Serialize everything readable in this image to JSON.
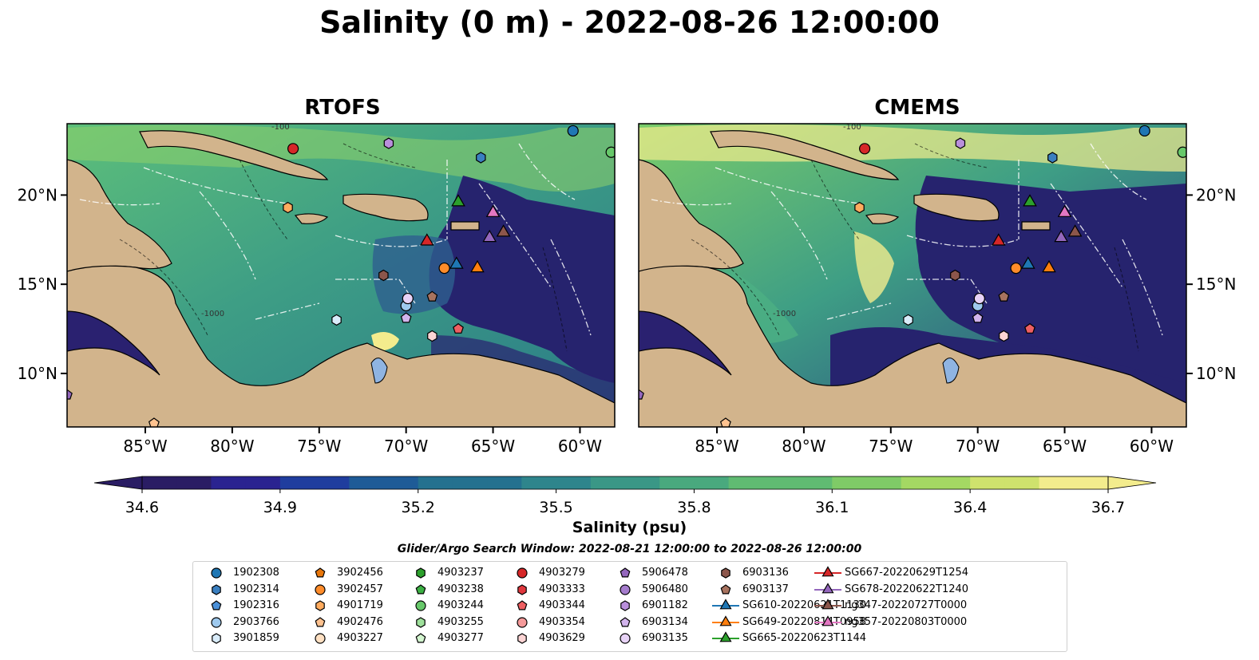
{
  "title": "Salinity (0 m) - 2022-08-26 12:00:00",
  "panels": [
    {
      "title": "RTOFS"
    },
    {
      "title": "CMEMS"
    }
  ],
  "map_axes": {
    "lon_labels": [
      "85°W",
      "80°W",
      "75°W",
      "70°W",
      "65°W",
      "60°W"
    ],
    "lon_values": [
      -85,
      -80,
      -75,
      -70,
      -65,
      -60
    ],
    "lat_labels": [
      "20°N",
      "15°N",
      "10°N"
    ],
    "lat_values": [
      20,
      15,
      10
    ],
    "extent": {
      "lon": [
        -89.5,
        -58.0
      ],
      "lat": [
        7.0,
        24.0
      ]
    }
  },
  "contour_labels": [
    "-100",
    "-1000"
  ],
  "colorbar": {
    "label": "Salinity (psu)",
    "ticks": [
      "34.6",
      "34.9",
      "35.2",
      "35.5",
      "35.8",
      "36.1",
      "36.4",
      "36.7"
    ],
    "min": 34.6,
    "max": 36.7,
    "colormap": "haline",
    "extend": "both"
  },
  "search_window": "Glider/Argo Search Window: 2022-08-21 12:00:00 to 2022-08-26 12:00:00",
  "legend": [
    {
      "label": "1902308",
      "marker": "circle",
      "color": "#1f77b4"
    },
    {
      "label": "1902314",
      "marker": "hexagon",
      "color": "#3a7fc0"
    },
    {
      "label": "1902316",
      "marker": "pentagon",
      "color": "#4a90d9"
    },
    {
      "label": "2903766",
      "marker": "circle",
      "color": "#9ec9ee"
    },
    {
      "label": "3901859",
      "marker": "hexagon",
      "color": "#d9ecfa"
    },
    {
      "label": "3902456",
      "marker": "pentagon",
      "color": "#e8760a"
    },
    {
      "label": "3902457",
      "marker": "circle",
      "color": "#ff8c2a"
    },
    {
      "label": "4901719",
      "marker": "hexagon",
      "color": "#ffab5e"
    },
    {
      "label": "4902476",
      "marker": "pentagon",
      "color": "#ffc28f"
    },
    {
      "label": "4903227",
      "marker": "circle",
      "color": "#ffe0c2"
    },
    {
      "label": "4903237",
      "marker": "hexagon",
      "color": "#2ca02c"
    },
    {
      "label": "4903238",
      "marker": "pentagon",
      "color": "#3cb043"
    },
    {
      "label": "4903244",
      "marker": "circle",
      "color": "#67c86a"
    },
    {
      "label": "4903255",
      "marker": "hexagon",
      "color": "#9ee09b"
    },
    {
      "label": "4903277",
      "marker": "pentagon",
      "color": "#d3f5cf"
    },
    {
      "label": "4903279",
      "marker": "circle",
      "color": "#d62728"
    },
    {
      "label": "4903333",
      "marker": "hexagon",
      "color": "#e0373d"
    },
    {
      "label": "4903344",
      "marker": "pentagon",
      "color": "#ee5f62"
    },
    {
      "label": "4903354",
      "marker": "circle",
      "color": "#f59a9a"
    },
    {
      "label": "4903629",
      "marker": "hexagon",
      "color": "#fcd4d4"
    },
    {
      "label": "5906478",
      "marker": "pentagon",
      "color": "#9467bd"
    },
    {
      "label": "5906480",
      "marker": "circle",
      "color": "#a57ccd"
    },
    {
      "label": "6901182",
      "marker": "hexagon",
      "color": "#b98fdb"
    },
    {
      "label": "6903134",
      "marker": "pentagon",
      "color": "#d2b4ec"
    },
    {
      "label": "6903135",
      "marker": "circle",
      "color": "#e8d3f7"
    },
    {
      "label": "6903136",
      "marker": "hexagon",
      "color": "#8c564b"
    },
    {
      "label": "6903137",
      "marker": "pentagon",
      "color": "#a8735f"
    },
    {
      "label": "SG610-20220621T1130",
      "marker": "triangle",
      "color": "#1f77b4"
    },
    {
      "label": "SG649-20220814T0958",
      "marker": "triangle",
      "color": "#ff7f0e"
    },
    {
      "label": "SG665-20220623T1144",
      "marker": "triangle",
      "color": "#2ca02c"
    },
    {
      "label": "SG667-20220629T1254",
      "marker": "triangle",
      "color": "#d62728"
    },
    {
      "label": "SG678-20220622T1240",
      "marker": "triangle",
      "color": "#9467bd"
    },
    {
      "label": "ng347-20220727T0000",
      "marker": "triangle",
      "color": "#8c564b"
    },
    {
      "label": "ng357-20220803T0000",
      "marker": "triangle",
      "color": "#e377c2"
    }
  ],
  "observations": [
    {
      "id": "1902308",
      "lon": -60.4,
      "lat": 23.6
    },
    {
      "id": "1902314",
      "lon": -65.7,
      "lat": 22.1
    },
    {
      "id": "2903766",
      "lon": -70.0,
      "lat": 13.8
    },
    {
      "id": "3901859",
      "lon": -74.0,
      "lat": 13.0
    },
    {
      "id": "3902457",
      "lon": -67.8,
      "lat": 15.9
    },
    {
      "id": "4901719",
      "lon": -76.8,
      "lat": 19.3
    },
    {
      "id": "4902476",
      "lon": -84.5,
      "lat": 7.2
    },
    {
      "id": "4903244",
      "lon": -58.2,
      "lat": 22.4
    },
    {
      "id": "4903279",
      "lon": -76.5,
      "lat": 22.6
    },
    {
      "id": "4903344",
      "lon": -67.0,
      "lat": 12.5
    },
    {
      "id": "4903629",
      "lon": -68.5,
      "lat": 12.1
    },
    {
      "id": "5906478",
      "lon": -89.5,
      "lat": 8.8
    },
    {
      "id": "6901182",
      "lon": -71.0,
      "lat": 22.9
    },
    {
      "id": "6903134",
      "lon": -70.0,
      "lat": 13.1
    },
    {
      "id": "6903135",
      "lon": -69.9,
      "lat": 14.2
    },
    {
      "id": "6903136",
      "lon": -71.3,
      "lat": 15.5
    },
    {
      "id": "6903137",
      "lon": -68.5,
      "lat": 14.3
    },
    {
      "id": "SG610-20220621T1130",
      "lon": -67.1,
      "lat": 16.1
    },
    {
      "id": "SG649-20220814T0958",
      "lon": -65.9,
      "lat": 15.9
    },
    {
      "id": "SG665-20220623T1144",
      "lon": -67.0,
      "lat": 19.6
    },
    {
      "id": "SG667-20220629T1254",
      "lon": -68.8,
      "lat": 17.4
    },
    {
      "id": "SG678-20220622T1240",
      "lon": -65.2,
      "lat": 17.6
    },
    {
      "id": "ng347-20220727T0000",
      "lon": -64.4,
      "lat": 17.9
    },
    {
      "id": "ng357-20220803T0000",
      "lon": -65.0,
      "lat": 19.0
    }
  ]
}
